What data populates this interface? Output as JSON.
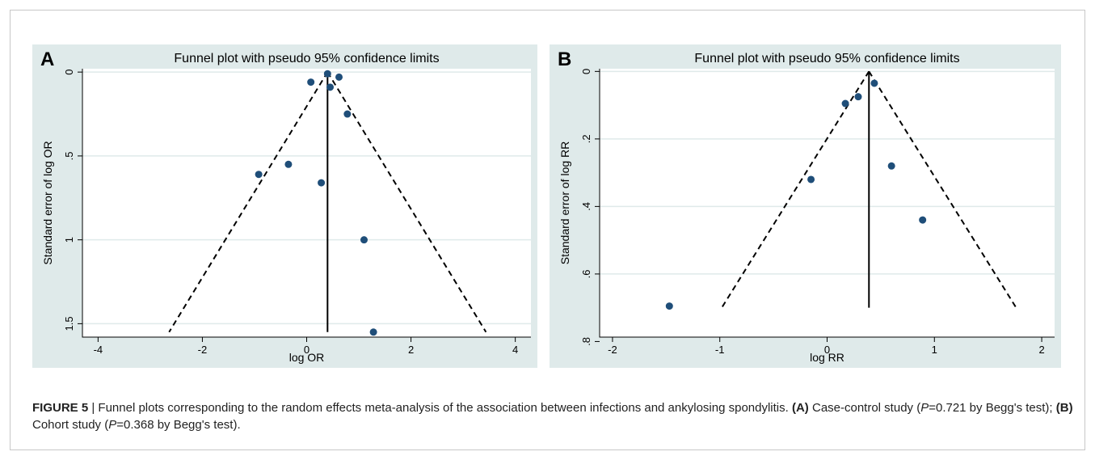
{
  "chart_data": [
    {
      "type": "scatter",
      "panel_label": "A",
      "title": "Funnel plot with pseudo 95% confidence limits",
      "xlabel": "log OR",
      "ylabel": "Standard error of log OR",
      "xlim": [
        -4.3,
        4.3
      ],
      "ylim": [
        1.58,
        -0.02
      ],
      "y_reversed": true,
      "xticks": [
        -4,
        -2,
        0,
        2,
        4
      ],
      "xtick_labels": [
        "-4",
        "-2",
        "0",
        "2",
        "4"
      ],
      "yticks": [
        0,
        0.5,
        1,
        1.5
      ],
      "ytick_labels": [
        "0",
        ".5",
        "1",
        "1.5"
      ],
      "grid": "horizontal",
      "points": [
        {
          "x": 0.4,
          "y": 0.01
        },
        {
          "x": 0.62,
          "y": 0.03
        },
        {
          "x": 0.08,
          "y": 0.06
        },
        {
          "x": 0.45,
          "y": 0.09
        },
        {
          "x": 0.78,
          "y": 0.25
        },
        {
          "x": -0.35,
          "y": 0.55
        },
        {
          "x": -0.92,
          "y": 0.61
        },
        {
          "x": 0.28,
          "y": 0.66
        },
        {
          "x": 1.1,
          "y": 1.0
        },
        {
          "x": 1.28,
          "y": 1.55
        }
      ],
      "pooled_estimate": 0.4,
      "se_max": 1.55,
      "colors": {
        "point": "#1f4e79",
        "line": "#000000",
        "grid": "#dfeaea"
      }
    },
    {
      "type": "scatter",
      "panel_label": "B",
      "title": "Funnel plot with pseudo 95% confidence limits",
      "xlabel": "log RR",
      "ylabel": "Standard error of log RR",
      "xlim": [
        -2.12,
        2.12
      ],
      "ylim": [
        0.787,
        -0.008
      ],
      "y_reversed": true,
      "xticks": [
        -2,
        -1,
        0,
        1,
        2
      ],
      "xtick_labels": [
        "-2",
        "-1",
        "0",
        "1",
        "2"
      ],
      "yticks": [
        0,
        0.2,
        0.4,
        0.6,
        0.8
      ],
      "ytick_labels": [
        "0",
        ".2",
        ".4",
        ".6",
        ".8"
      ],
      "grid": "horizontal",
      "points": [
        {
          "x": 0.44,
          "y": 0.035
        },
        {
          "x": 0.29,
          "y": 0.075
        },
        {
          "x": 0.17,
          "y": 0.095
        },
        {
          "x": 0.6,
          "y": 0.28
        },
        {
          "x": -0.15,
          "y": 0.32
        },
        {
          "x": 0.89,
          "y": 0.44
        },
        {
          "x": -1.47,
          "y": 0.695
        }
      ],
      "pooled_estimate": 0.39,
      "se_max": 0.7,
      "colors": {
        "point": "#1f4e79",
        "line": "#000000",
        "grid": "#dfeaea"
      }
    }
  ],
  "caption": {
    "figure_label": "FIGURE 5",
    "separator": " | ",
    "part1": "Funnel plots corresponding to the random effects meta-analysis of the association between infections and ankylosing spondylitis. ",
    "a_label": "(A)",
    "part2": " Case-control study (",
    "p_symbol": "P",
    "a_stat": "=0.721 by Begg's test); ",
    "b_label": "(B)",
    "part3": " Cohort study (",
    "b_stat": "=0.368 by Begg's test)."
  }
}
